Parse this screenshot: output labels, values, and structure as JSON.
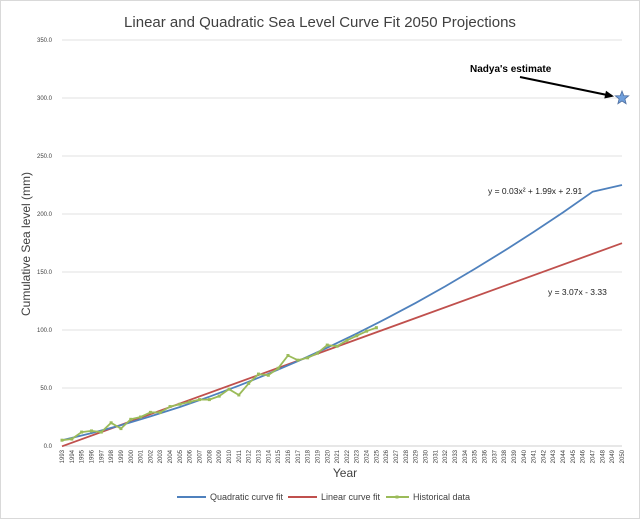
{
  "chart_data": {
    "type": "line",
    "title": "Linear and Quadratic Sea Level Curve Fit 2050 Projections",
    "xlabel": "Year",
    "ylabel": "Cumulative Sea level (mm)",
    "xlim": [
      1993,
      2050
    ],
    "ylim": [
      0,
      350
    ],
    "y_ticks": [
      "0.0",
      "50.0",
      "100.0",
      "150.0",
      "200.0",
      "250.0",
      "300.0",
      "350.0"
    ],
    "grid": "horizontal",
    "legend": "bottom",
    "equations": {
      "quadratic": "y = 0.03x² + 1.99x + 2.91",
      "linear": "y = 3.07x - 3.33"
    },
    "annotation": {
      "text": "Nadya's estimate",
      "x": 2050,
      "y": 300
    },
    "series": [
      {
        "name": "Quadratic curve fit",
        "color": "#4f81bd",
        "x": [
          1993,
          1996,
          1999,
          2002,
          2005,
          2008,
          2011,
          2014,
          2017,
          2020,
          2023,
          2026,
          2029,
          2032,
          2035,
          2038,
          2041,
          2044,
          2047,
          2050
        ],
        "values": [
          4.9,
          11.1,
          17.9,
          25.5,
          33.6,
          42.5,
          52.0,
          62.2,
          73.1,
          84.7,
          96.9,
          109.8,
          123.4,
          137.6,
          152.6,
          168.2,
          184.5,
          201.4,
          219.1,
          225.0
        ]
      },
      {
        "name": "Linear curve fit",
        "color": "#c0504d",
        "x": [
          1993,
          2050
        ],
        "values": [
          -0.3,
          174.8
        ]
      },
      {
        "name": "Historical data",
        "color": "#9bbb59",
        "x": [
          1993,
          1994,
          1995,
          1996,
          1997,
          1998,
          1999,
          2000,
          2001,
          2002,
          2003,
          2004,
          2005,
          2006,
          2007,
          2008,
          2009,
          2010,
          2011,
          2012,
          2013,
          2014,
          2015,
          2016,
          2017,
          2018,
          2019,
          2020,
          2021,
          2022,
          2023,
          2024,
          2025
        ],
        "values": [
          5,
          6,
          12,
          13,
          12,
          20,
          15,
          23,
          25,
          29,
          29,
          34,
          36,
          38,
          40,
          40,
          43,
          49,
          44,
          54,
          62,
          61,
          67,
          78,
          74,
          76,
          80,
          87,
          86,
          91,
          95,
          99,
          102
        ]
      }
    ],
    "x_tick_labels": [
      "1993",
      "1994",
      "1995",
      "1996",
      "1997",
      "1998",
      "1999",
      "2000",
      "2001",
      "2002",
      "2003",
      "2004",
      "2005",
      "2006",
      "2007",
      "2008",
      "2009",
      "2010",
      "2011",
      "2012",
      "2013",
      "2014",
      "2015",
      "2016",
      "2017",
      "2018",
      "2019",
      "2020",
      "2021",
      "2022",
      "2023",
      "2024",
      "2025",
      "2026",
      "2027",
      "2028",
      "2029",
      "2030",
      "2031",
      "2032",
      "2033",
      "2034",
      "2035",
      "2036",
      "2037",
      "2038",
      "2039",
      "2040",
      "2041",
      "2042",
      "2043",
      "2044",
      "2045",
      "2046",
      "2047",
      "2048",
      "2049",
      "2050"
    ]
  }
}
